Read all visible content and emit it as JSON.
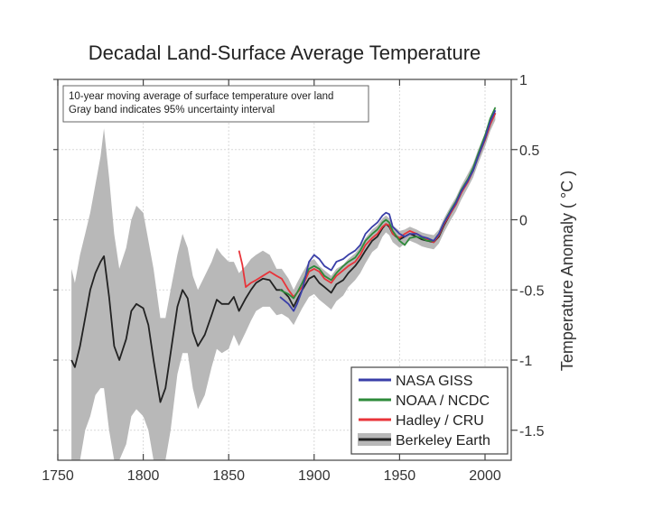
{
  "chart_data": {
    "type": "line",
    "title": "Decadal Land-Surface Average Temperature",
    "xlabel": "",
    "ylabel": "Temperature Anomaly ( °C )",
    "xlim": [
      1750,
      2015
    ],
    "ylim": [
      -1.7,
      1.0
    ],
    "x_ticks": [
      1750,
      1800,
      1850,
      1900,
      1950,
      2000
    ],
    "y_ticks": [
      1,
      0.5,
      0,
      -0.5,
      -1,
      -1.5
    ],
    "y_tick_labels": [
      "1",
      "0.5",
      "0",
      "-0.5",
      "-1",
      "-1.5"
    ],
    "y_axis_side": "right",
    "grid": true,
    "annotation": [
      "10-year moving average of surface temperature over land",
      "Gray band indicates 95% uncertainty interval"
    ],
    "legend_position": "bottom-right",
    "series": [
      {
        "name": "NASA GISS",
        "color": "#3a3fa8",
        "x": [
          1880,
          1885,
          1888,
          1890,
          1893,
          1897,
          1900,
          1903,
          1906,
          1910,
          1913,
          1917,
          1920,
          1924,
          1927,
          1930,
          1934,
          1937,
          1940,
          1942,
          1944,
          1946,
          1950,
          1953,
          1956,
          1960,
          1963,
          1966,
          1970,
          1973,
          1976,
          1980,
          1983,
          1986,
          1990,
          1993,
          1996,
          2000,
          2003,
          2006
        ],
        "values": [
          -0.55,
          -0.6,
          -0.65,
          -0.6,
          -0.5,
          -0.3,
          -0.25,
          -0.28,
          -0.33,
          -0.36,
          -0.3,
          -0.28,
          -0.25,
          -0.22,
          -0.18,
          -0.1,
          -0.05,
          -0.02,
          0.03,
          0.05,
          0.04,
          -0.05,
          -0.1,
          -0.12,
          -0.1,
          -0.1,
          -0.12,
          -0.13,
          -0.15,
          -0.1,
          -0.02,
          0.06,
          0.12,
          0.2,
          0.28,
          0.35,
          0.45,
          0.58,
          0.7,
          0.78
        ]
      },
      {
        "name": "NOAA / NCDC",
        "color": "#2e8a3a",
        "x": [
          1880,
          1885,
          1888,
          1890,
          1893,
          1897,
          1900,
          1903,
          1906,
          1910,
          1913,
          1917,
          1920,
          1924,
          1927,
          1930,
          1934,
          1937,
          1940,
          1942,
          1944,
          1946,
          1950,
          1953,
          1956,
          1960,
          1963,
          1966,
          1970,
          1973,
          1976,
          1980,
          1983,
          1986,
          1990,
          1993,
          1996,
          2000,
          2003,
          2006
        ],
        "values": [
          -0.5,
          -0.53,
          -0.56,
          -0.52,
          -0.45,
          -0.35,
          -0.33,
          -0.35,
          -0.4,
          -0.43,
          -0.38,
          -0.33,
          -0.3,
          -0.27,
          -0.22,
          -0.15,
          -0.1,
          -0.07,
          -0.02,
          0.0,
          -0.02,
          -0.08,
          -0.15,
          -0.18,
          -0.13,
          -0.12,
          -0.13,
          -0.15,
          -0.15,
          -0.1,
          -0.02,
          0.07,
          0.13,
          0.21,
          0.29,
          0.37,
          0.47,
          0.6,
          0.72,
          0.8
        ]
      },
      {
        "name": "Hadley / CRU",
        "color": "#e8343a",
        "x": [
          1856,
          1858,
          1860,
          1863,
          1866,
          1870,
          1874,
          1878,
          1881,
          1885,
          1888,
          1890,
          1893,
          1897,
          1900,
          1903,
          1906,
          1910,
          1913,
          1917,
          1920,
          1924,
          1927,
          1930,
          1934,
          1937,
          1940,
          1942,
          1944,
          1946,
          1950,
          1953,
          1956,
          1960,
          1963,
          1966,
          1970,
          1973,
          1976,
          1980,
          1983,
          1986,
          1990,
          1993,
          1996,
          2000,
          2003,
          2006
        ],
        "values": [
          -0.22,
          -0.32,
          -0.48,
          -0.45,
          -0.43,
          -0.4,
          -0.37,
          -0.4,
          -0.42,
          -0.5,
          -0.55,
          -0.52,
          -0.48,
          -0.37,
          -0.35,
          -0.37,
          -0.42,
          -0.45,
          -0.4,
          -0.36,
          -0.33,
          -0.3,
          -0.25,
          -0.18,
          -0.13,
          -0.1,
          -0.05,
          -0.03,
          -0.04,
          -0.1,
          -0.13,
          -0.1,
          -0.08,
          -0.1,
          -0.12,
          -0.14,
          -0.16,
          -0.11,
          -0.03,
          0.05,
          0.11,
          0.19,
          0.27,
          0.35,
          0.45,
          0.57,
          0.68,
          0.76
        ]
      },
      {
        "name": "Berkeley Earth",
        "color": "#222222",
        "x": [
          1758,
          1760,
          1763,
          1766,
          1769,
          1772,
          1775,
          1777,
          1780,
          1783,
          1786,
          1790,
          1793,
          1796,
          1800,
          1803,
          1806,
          1810,
          1813,
          1816,
          1820,
          1823,
          1826,
          1829,
          1832,
          1836,
          1840,
          1843,
          1846,
          1850,
          1853,
          1856,
          1860,
          1863,
          1866,
          1870,
          1874,
          1878,
          1881,
          1885,
          1888,
          1890,
          1893,
          1897,
          1900,
          1903,
          1906,
          1910,
          1913,
          1917,
          1920,
          1924,
          1927,
          1930,
          1934,
          1937,
          1940,
          1942,
          1944,
          1946,
          1950,
          1953,
          1956,
          1960,
          1963,
          1966,
          1970,
          1973,
          1976,
          1980,
          1983,
          1986,
          1990,
          1993,
          1996,
          2000,
          2003,
          2006
        ],
        "values": [
          -1.0,
          -1.05,
          -0.9,
          -0.7,
          -0.5,
          -0.38,
          -0.3,
          -0.26,
          -0.55,
          -0.9,
          -1.0,
          -0.85,
          -0.65,
          -0.6,
          -0.63,
          -0.75,
          -1.0,
          -1.3,
          -1.2,
          -0.95,
          -0.62,
          -0.5,
          -0.56,
          -0.8,
          -0.9,
          -0.82,
          -0.68,
          -0.57,
          -0.6,
          -0.6,
          -0.55,
          -0.65,
          -0.56,
          -0.5,
          -0.45,
          -0.42,
          -0.43,
          -0.5,
          -0.5,
          -0.55,
          -0.62,
          -0.57,
          -0.5,
          -0.42,
          -0.4,
          -0.45,
          -0.48,
          -0.52,
          -0.46,
          -0.43,
          -0.38,
          -0.33,
          -0.28,
          -0.22,
          -0.15,
          -0.12,
          -0.06,
          -0.03,
          -0.05,
          -0.1,
          -0.14,
          -0.12,
          -0.1,
          -0.12,
          -0.14,
          -0.15,
          -0.16,
          -0.12,
          -0.04,
          0.05,
          0.11,
          0.19,
          0.28,
          0.35,
          0.45,
          0.57,
          0.68,
          0.76
        ]
      }
    ],
    "uncertainty_band": {
      "name": "Berkeley Earth 95% uncertainty",
      "color": "#b8b8b8",
      "x": [
        1758,
        1760,
        1763,
        1766,
        1769,
        1772,
        1775,
        1777,
        1780,
        1783,
        1786,
        1790,
        1793,
        1796,
        1800,
        1803,
        1806,
        1810,
        1813,
        1816,
        1820,
        1823,
        1826,
        1829,
        1832,
        1836,
        1840,
        1843,
        1846,
        1850,
        1853,
        1856,
        1860,
        1863,
        1866,
        1870,
        1874,
        1878,
        1881,
        1885,
        1888,
        1890,
        1893,
        1897,
        1900,
        1903,
        1906,
        1910,
        1913,
        1917,
        1920,
        1924,
        1927,
        1930,
        1934,
        1937,
        1940,
        1942,
        1944,
        1946,
        1950,
        1953,
        1956,
        1960,
        1963,
        1966,
        1970,
        1973,
        1976,
        1980,
        1983,
        1986,
        1990,
        1993,
        1996,
        2000,
        2003,
        2006
      ],
      "upper": [
        -0.35,
        -0.45,
        -0.25,
        -0.1,
        0.05,
        0.25,
        0.45,
        0.65,
        0.3,
        -0.1,
        -0.35,
        -0.2,
        0.0,
        0.1,
        0.05,
        -0.15,
        -0.35,
        -0.7,
        -0.7,
        -0.5,
        -0.25,
        -0.1,
        -0.2,
        -0.4,
        -0.5,
        -0.4,
        -0.3,
        -0.2,
        -0.25,
        -0.3,
        -0.3,
        -0.38,
        -0.33,
        -0.28,
        -0.25,
        -0.22,
        -0.25,
        -0.35,
        -0.35,
        -0.42,
        -0.5,
        -0.45,
        -0.38,
        -0.3,
        -0.28,
        -0.33,
        -0.36,
        -0.4,
        -0.35,
        -0.32,
        -0.28,
        -0.24,
        -0.19,
        -0.13,
        -0.07,
        -0.04,
        0.01,
        0.03,
        0.01,
        -0.04,
        -0.08,
        -0.07,
        -0.05,
        -0.07,
        -0.09,
        -0.1,
        -0.11,
        -0.07,
        0.01,
        0.1,
        0.16,
        0.24,
        0.33,
        0.4,
        0.5,
        0.62,
        0.73,
        0.81
      ],
      "lower": [
        -1.8,
        -1.8,
        -1.75,
        -1.5,
        -1.4,
        -1.25,
        -1.2,
        -1.2,
        -1.5,
        -1.8,
        -1.8,
        -1.6,
        -1.4,
        -1.35,
        -1.4,
        -1.5,
        -1.8,
        -1.8,
        -1.75,
        -1.5,
        -1.1,
        -0.95,
        -0.95,
        -1.2,
        -1.35,
        -1.25,
        -1.05,
        -0.92,
        -0.95,
        -0.92,
        -0.82,
        -0.9,
        -0.8,
        -0.72,
        -0.65,
        -0.62,
        -0.62,
        -0.68,
        -0.67,
        -0.7,
        -0.75,
        -0.7,
        -0.63,
        -0.55,
        -0.53,
        -0.57,
        -0.6,
        -0.64,
        -0.58,
        -0.54,
        -0.48,
        -0.43,
        -0.38,
        -0.31,
        -0.23,
        -0.2,
        -0.12,
        -0.09,
        -0.11,
        -0.16,
        -0.2,
        -0.17,
        -0.15,
        -0.17,
        -0.19,
        -0.2,
        -0.21,
        -0.17,
        -0.09,
        0.0,
        0.06,
        0.14,
        0.23,
        0.3,
        0.4,
        0.52,
        0.63,
        0.71
      ]
    }
  }
}
